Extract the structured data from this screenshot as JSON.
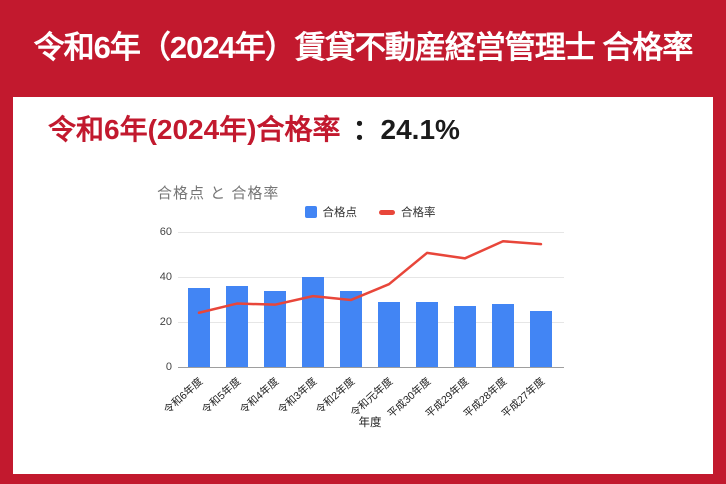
{
  "banner": {
    "title": "令和6年（2024年）賃貸不動産経営管理士 合格率"
  },
  "heading": {
    "label": "令和6年(2024年)合格率",
    "value": "：24.1%"
  },
  "colors": {
    "frame_red": "#C2192E",
    "heading_red": "#C2192E",
    "bar_blue": "#4285F4",
    "line_red": "#E8463A"
  },
  "chart_data": {
    "type": "combo",
    "title": "合格点 と 合格率",
    "xlabel": "年度",
    "ylabel": "",
    "ylim": [
      0,
      60
    ],
    "yticks": [
      0,
      20,
      40,
      60
    ],
    "grid": true,
    "legend_position": "top",
    "categories": [
      "令和6年度",
      "令和5年度",
      "令和4年度",
      "令和3年度",
      "令和2年度",
      "令和元年度",
      "平成30年度",
      "平成29年度",
      "平成28年度",
      "平成27年度"
    ],
    "series": [
      {
        "name": "合格点",
        "type": "bar",
        "color": "#4285F4",
        "values": [
          35,
          36,
          34,
          40,
          34,
          29,
          29,
          27,
          28,
          25
        ]
      },
      {
        "name": "合格率",
        "type": "line",
        "color": "#E8463A",
        "values": [
          24.1,
          28.2,
          27.7,
          31.5,
          29.8,
          36.8,
          50.7,
          48.3,
          55.9,
          54.6
        ]
      }
    ]
  }
}
